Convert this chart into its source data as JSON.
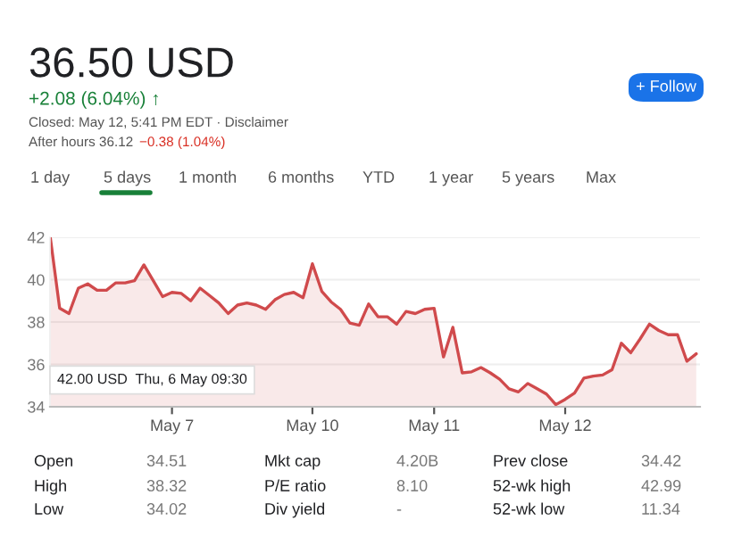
{
  "chart_data": {
    "type": "area",
    "title": "36.50 USD",
    "subtitle": "+2.08 (6.04%) ↑",
    "categories": [
      null,
      null,
      null,
      null,
      null,
      null,
      null,
      null,
      null,
      null,
      null,
      null,
      null,
      "May 7",
      null,
      null,
      null,
      null,
      null,
      null,
      null,
      null,
      null,
      null,
      null,
      null,
      null,
      null,
      "May 10",
      null,
      null,
      null,
      null,
      null,
      null,
      null,
      null,
      null,
      null,
      null,
      null,
      "May 11",
      null,
      null,
      null,
      null,
      null,
      null,
      null,
      null,
      null,
      null,
      null,
      null,
      null,
      "May 12",
      null,
      null,
      null,
      null,
      null,
      null,
      null,
      null,
      null,
      null,
      null,
      null,
      null,
      null
    ],
    "series": [
      {
        "color": "#d04a4c",
        "values": [
          42.0,
          38.65,
          38.4,
          39.6,
          39.8,
          39.5,
          39.5,
          39.85,
          39.85,
          39.95,
          40.7,
          39.95,
          39.2,
          39.4,
          39.35,
          39.0,
          39.6,
          39.25,
          38.9,
          38.4,
          38.8,
          38.9,
          38.8,
          38.6,
          39.05,
          39.3,
          39.4,
          39.15,
          40.75,
          39.45,
          38.95,
          38.6,
          37.95,
          37.85,
          38.85,
          38.25,
          38.25,
          37.9,
          38.5,
          38.4,
          38.6,
          38.65,
          36.35,
          37.75,
          35.6,
          35.65,
          35.85,
          35.6,
          35.3,
          34.85,
          34.7,
          35.1,
          34.85,
          34.6,
          34.1,
          34.35,
          34.65,
          35.35,
          35.45,
          35.5,
          35.75,
          37.0,
          36.55,
          37.2,
          37.9,
          37.6,
          37.4,
          37.4,
          36.15,
          36.5
        ]
      }
    ],
    "ylim": [
      34,
      42
    ],
    "yticks": [
      34,
      36,
      38,
      40,
      42
    ],
    "grid": "y",
    "annotations": [
      "Closed: May 12, 5:41 PM EDT · Disclaimer",
      "After hours 36.12",
      "−0.38 (1.04%)",
      "+ Follow",
      "1 day",
      "5 days",
      "1 month",
      "6 months",
      "YTD",
      "1 year",
      "5 years",
      "Max",
      "Open",
      "34.51",
      "Mkt cap",
      "4.20B",
      "Prev close",
      "34.42",
      "High",
      "38.32",
      "P/E ratio",
      "8.10",
      "52-wk high",
      "42.99",
      "Low",
      "34.02",
      "Div yield",
      "-",
      "52-wk low",
      "11.34",
      "42.00 USD  Thu, 6 May 09:30"
    ]
  }
}
